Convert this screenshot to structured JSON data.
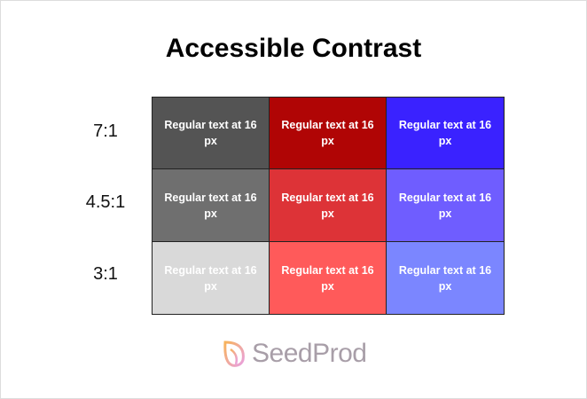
{
  "title": "Accessible Contrast",
  "rows": [
    {
      "label": "7:1",
      "cells": [
        {
          "text": "Regular text at 16 px",
          "bg": "#545454",
          "fg": "#ffffff"
        },
        {
          "text": "Regular text at 16 px",
          "bg": "#b00505",
          "fg": "#ffffff"
        },
        {
          "text": "Regular text at 16 px",
          "bg": "#3a22ff",
          "fg": "#ffffff"
        }
      ]
    },
    {
      "label": "4.5:1",
      "cells": [
        {
          "text": "Regular text at 16 px",
          "bg": "#6f6f6f",
          "fg": "#ffffff"
        },
        {
          "text": "Regular text at 16 px",
          "bg": "#dd3337",
          "fg": "#ffffff"
        },
        {
          "text": "Regular text at 16 px",
          "bg": "#6f5dff",
          "fg": "#ffffff"
        }
      ]
    },
    {
      "label": "3:1",
      "cells": [
        {
          "text": "Regular text at 16 px",
          "bg": "#d9d9d9",
          "fg": "#ffffff"
        },
        {
          "text": "Regular text at 16 px",
          "bg": "#ff5a5a",
          "fg": "#ffffff"
        },
        {
          "text": "Regular text at 16 px",
          "bg": "#7b86ff",
          "fg": "#ffffff"
        }
      ]
    }
  ],
  "logo": {
    "text": "SeedProd",
    "icon": "leaf-icon"
  }
}
